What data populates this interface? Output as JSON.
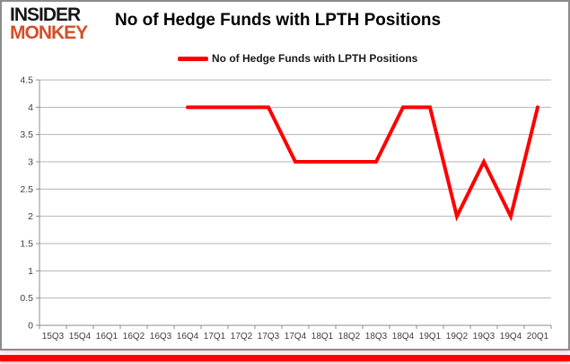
{
  "header": {
    "logo_line1": "INSIDER",
    "logo_line2": "MONKEY",
    "title": "No of Hedge Funds with LPTH Positions"
  },
  "legend": {
    "label": "No of Hedge Funds with LPTH Positions"
  },
  "colors": {
    "line": "#ff0000",
    "accent_bar": "#ff0000",
    "logo_black": "#161616",
    "logo_red": "#d34f2a",
    "grid": "#b5b5b5",
    "axis": "#8c8c8c",
    "tick_label": "#404040"
  },
  "chart_data": {
    "type": "line",
    "title": "No of Hedge Funds with LPTH Positions",
    "categories": [
      "15Q3",
      "15Q4",
      "16Q1",
      "16Q2",
      "16Q3",
      "16Q4",
      "17Q1",
      "17Q2",
      "17Q3",
      "17Q4",
      "18Q1",
      "18Q2",
      "18Q3",
      "18Q4",
      "19Q1",
      "19Q2",
      "19Q3",
      "19Q4",
      "20Q1"
    ],
    "series": [
      {
        "name": "No of Hedge Funds with LPTH Positions",
        "color": "#ff0000",
        "values": [
          null,
          null,
          null,
          null,
          null,
          4,
          4,
          4,
          4,
          3,
          3,
          3,
          3,
          4,
          4,
          2,
          3,
          2,
          4
        ]
      }
    ],
    "xlabel": "",
    "ylabel": "",
    "ylim": [
      0,
      4.5
    ],
    "y_tick_step": 0.5,
    "y_ticks": [
      "0",
      "0.5",
      "1",
      "1.5",
      "2",
      "2.5",
      "3",
      "3.5",
      "4",
      "4.5"
    ],
    "grid": true,
    "legend_position": "top"
  }
}
